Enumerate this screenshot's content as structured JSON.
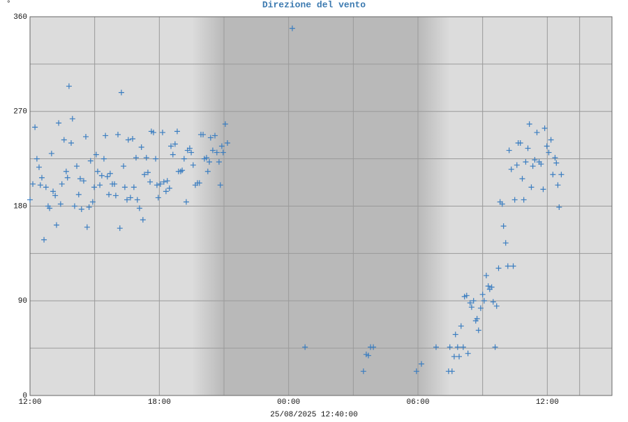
{
  "chart_data": {
    "type": "scatter",
    "title": "Direzione del vento",
    "ylabel": "°",
    "xlabel": "25/08/2025 12:40:00",
    "color": "#3a7dc0",
    "grid": true,
    "night": [
      21,
      30
    ],
    "xlim": [
      12,
      39
    ],
    "ylim": [
      0,
      360
    ],
    "xticks": [
      {
        "value": 12,
        "label": "12:00"
      },
      {
        "value": 18,
        "label": "18:00"
      },
      {
        "value": 24,
        "label": "00:00"
      },
      {
        "value": 30,
        "label": "06:00"
      },
      {
        "value": 36,
        "label": "12:00"
      }
    ],
    "yticks": [
      0,
      90,
      180,
      270,
      360
    ],
    "x": [
      12.0,
      12.13,
      12.23,
      12.32,
      12.42,
      12.48,
      12.55,
      12.65,
      12.74,
      12.84,
      12.91,
      13.0,
      13.07,
      13.17,
      13.23,
      13.33,
      13.42,
      13.48,
      13.58,
      13.68,
      13.74,
      13.81,
      13.91,
      13.97,
      14.07,
      14.17,
      14.26,
      14.33,
      14.39,
      14.49,
      14.59,
      14.65,
      14.74,
      14.81,
      14.91,
      14.98,
      15.07,
      15.14,
      15.24,
      15.33,
      15.43,
      15.5,
      15.59,
      15.66,
      15.72,
      15.82,
      15.92,
      15.98,
      16.08,
      16.17,
      16.24,
      16.34,
      16.4,
      16.5,
      16.56,
      16.66,
      16.76,
      16.82,
      16.92,
      16.98,
      17.08,
      17.17,
      17.24,
      17.31,
      17.4,
      17.47,
      17.57,
      17.63,
      17.73,
      17.83,
      17.89,
      17.95,
      18.05,
      18.15,
      18.21,
      18.31,
      18.37,
      18.47,
      18.54,
      18.63,
      18.73,
      18.83,
      18.89,
      18.99,
      19.06,
      19.15,
      19.25,
      19.31,
      19.41,
      19.48,
      19.57,
      19.67,
      19.77,
      19.86,
      19.93,
      20.03,
      20.09,
      20.19,
      20.25,
      20.32,
      20.38,
      20.48,
      20.58,
      20.67,
      20.77,
      20.83,
      20.9,
      20.96,
      21.06,
      21.16,
      24.17,
      24.76,
      27.47,
      27.6,
      27.7,
      27.8,
      27.93,
      29.93,
      30.16,
      30.84,
      31.42,
      31.48,
      31.58,
      31.68,
      31.74,
      31.84,
      31.91,
      32.0,
      32.1,
      32.16,
      32.26,
      32.32,
      32.42,
      32.49,
      32.58,
      32.68,
      32.74,
      32.81,
      32.91,
      33.0,
      33.07,
      33.17,
      33.26,
      33.33,
      33.42,
      33.49,
      33.58,
      33.65,
      33.74,
      33.81,
      33.91,
      33.97,
      34.07,
      34.17,
      34.23,
      34.33,
      34.42,
      34.49,
      34.59,
      34.65,
      34.75,
      34.84,
      34.91,
      35.0,
      35.1,
      35.17,
      35.26,
      35.33,
      35.42,
      35.52,
      35.62,
      35.71,
      35.81,
      35.88,
      35.98,
      36.07,
      36.17,
      36.26,
      36.36,
      36.42,
      36.49,
      36.55,
      36.65
    ],
    "values": [
      186,
      201,
      255,
      225,
      217,
      200,
      207,
      148,
      198,
      180,
      178,
      230,
      194,
      190,
      162,
      259,
      182,
      201,
      243,
      213,
      207,
      294,
      240,
      263,
      180,
      218,
      191,
      206,
      177,
      204,
      246,
      160,
      179,
      223,
      184,
      198,
      229,
      213,
      200,
      209,
      225,
      247,
      208,
      191,
      211,
      201,
      201,
      190,
      248,
      159,
      288,
      218,
      198,
      186,
      243,
      188,
      244,
      198,
      226,
      186,
      178,
      236,
      167,
      210,
      226,
      212,
      203,
      251,
      250,
      225,
      200,
      188,
      201,
      250,
      203,
      194,
      204,
      197,
      237,
      229,
      239,
      251,
      213,
      213,
      214,
      225,
      184,
      233,
      235,
      231,
      219,
      200,
      202,
      202,
      248,
      248,
      225,
      226,
      213,
      222,
      245,
      233,
      247,
      231,
      222,
      200,
      237,
      231,
      258,
      240,
      349,
      46,
      23,
      39,
      38,
      46,
      46,
      23,
      30,
      46,
      23,
      46,
      23,
      37,
      58,
      46,
      37,
      66,
      46,
      94,
      95,
      40,
      88,
      84,
      90,
      71,
      73,
      62,
      83,
      96,
      90,
      114,
      104,
      101,
      103,
      89,
      46,
      85,
      121,
      184,
      182,
      161,
      145,
      123,
      233,
      215,
      123,
      186,
      219,
      240,
      240,
      206,
      186,
      222,
      235,
      258,
      198,
      218,
      224,
      250,
      222,
      220,
      196,
      254,
      237,
      231,
      243,
      210,
      226,
      221,
      200,
      179,
      210
    ]
  }
}
